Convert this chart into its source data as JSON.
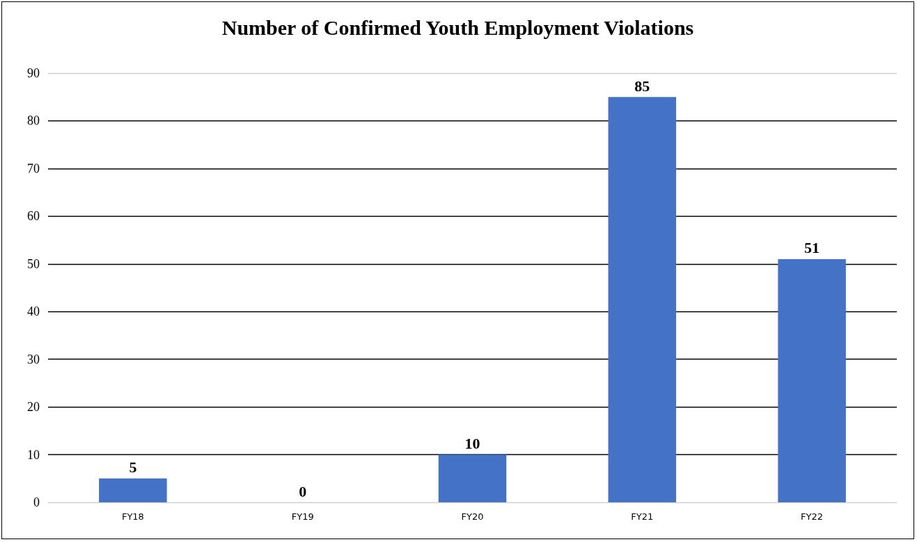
{
  "chart_data": {
    "type": "bar",
    "title": "Number of Confirmed Youth Employment Violations",
    "categories": [
      "FY18",
      "FY19",
      "FY20",
      "FY21",
      "FY22"
    ],
    "values": [
      5,
      0,
      10,
      85,
      51
    ],
    "color": "#4472c4",
    "ylim": [
      0,
      90
    ],
    "yticks": [
      0,
      10,
      20,
      30,
      40,
      50,
      60,
      70,
      80,
      90
    ],
    "grid": "y",
    "data_labels": true
  }
}
